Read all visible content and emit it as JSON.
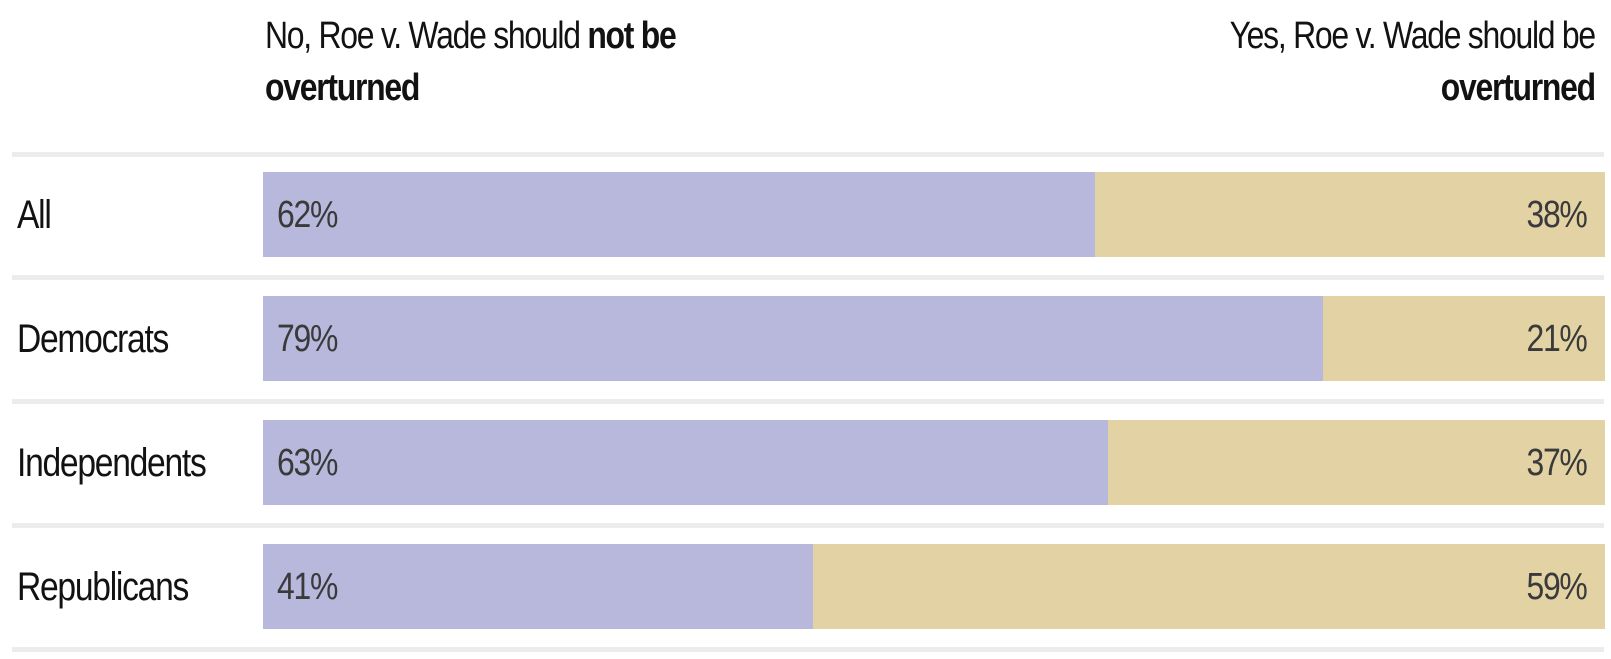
{
  "header": {
    "left_prefix": "No, Roe v. Wade should ",
    "left_bold1": "not be",
    "left_bold2": "overturned",
    "right_line1": "Yes, Roe v. Wade should be",
    "right_bold": "overturned"
  },
  "colors": {
    "no": "#b8b8dc",
    "yes": "#e2d2a4",
    "separator": "#ececec"
  },
  "chart_data": {
    "type": "bar",
    "orientation": "horizontal",
    "stacked": true,
    "categories": [
      "All",
      "Democrats",
      "Independents",
      "Republicans"
    ],
    "series": [
      {
        "name": "No, Roe v. Wade should not be overturned",
        "values": [
          62,
          79,
          63,
          41
        ],
        "labels": [
          "62%",
          "79%",
          "63%",
          "41%"
        ]
      },
      {
        "name": "Yes, Roe v. Wade should be overturned",
        "values": [
          38,
          21,
          37,
          59
        ],
        "labels": [
          "38%",
          "21%",
          "37%",
          "59%"
        ]
      }
    ],
    "xlim": [
      0,
      100
    ],
    "grid": false,
    "legend": "top"
  }
}
